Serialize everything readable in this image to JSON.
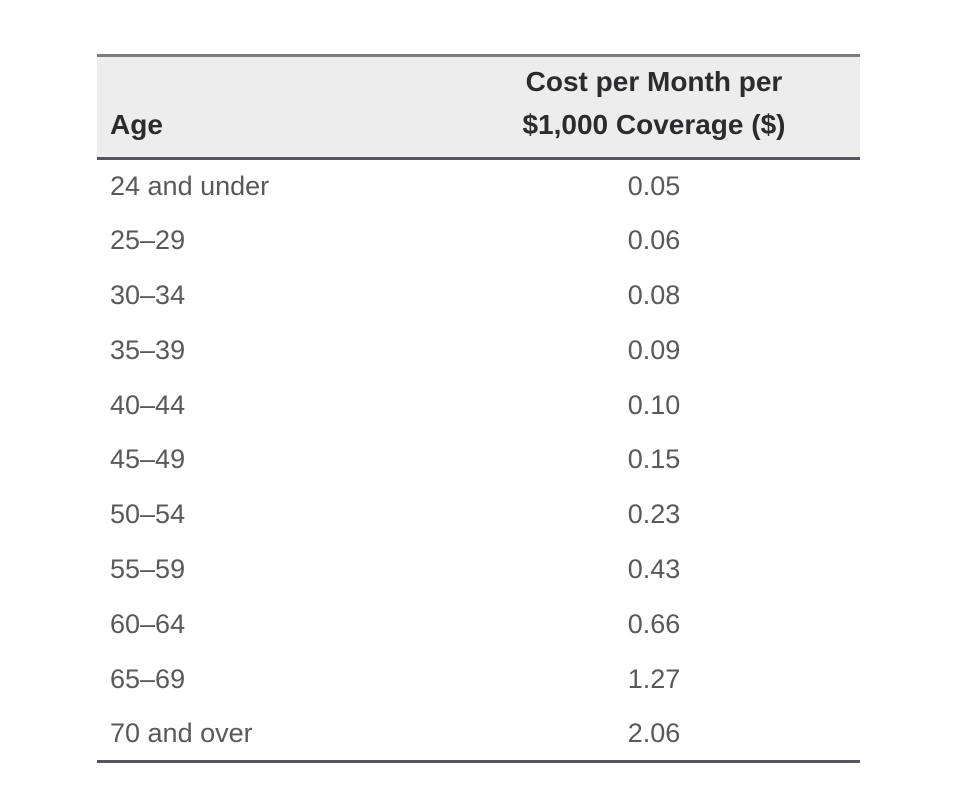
{
  "table": {
    "header": {
      "age": "Age",
      "cost_line1": "Cost per Month per",
      "cost_line2": "$1,000 Coverage ($)"
    },
    "rows": [
      {
        "age": "24 and under",
        "cost": "0.05"
      },
      {
        "age": "25–29",
        "cost": "0.06"
      },
      {
        "age": "30–34",
        "cost": "0.08"
      },
      {
        "age": "35–39",
        "cost": "0.09"
      },
      {
        "age": "40–44",
        "cost": "0.10"
      },
      {
        "age": "45–49",
        "cost": "0.15"
      },
      {
        "age": "50–54",
        "cost": "0.23"
      },
      {
        "age": "55–59",
        "cost": "0.43"
      },
      {
        "age": "60–64",
        "cost": "0.66"
      },
      {
        "age": "65–69",
        "cost": "1.27"
      },
      {
        "age": "70 and over",
        "cost": "2.06"
      }
    ]
  },
  "chart_data": {
    "type": "table",
    "title": "",
    "columns": [
      "Age",
      "Cost per Month per $1,000 Coverage ($)"
    ],
    "rows": [
      [
        "24 and under",
        0.05
      ],
      [
        "25–29",
        0.06
      ],
      [
        "30–34",
        0.08
      ],
      [
        "35–39",
        0.09
      ],
      [
        "40–44",
        0.1
      ],
      [
        "45–49",
        0.15
      ],
      [
        "50–54",
        0.23
      ],
      [
        "55–59",
        0.43
      ],
      [
        "60–64",
        0.66
      ],
      [
        "65–69",
        1.27
      ],
      [
        "70 and over",
        2.06
      ]
    ]
  },
  "colors": {
    "background": "#ffffff",
    "header_bg": "#ededed",
    "rule_top": "#7c7c7e",
    "rule_dark": "#55555a",
    "header_text": "#2c2c2e",
    "body_text": "#59595b"
  }
}
